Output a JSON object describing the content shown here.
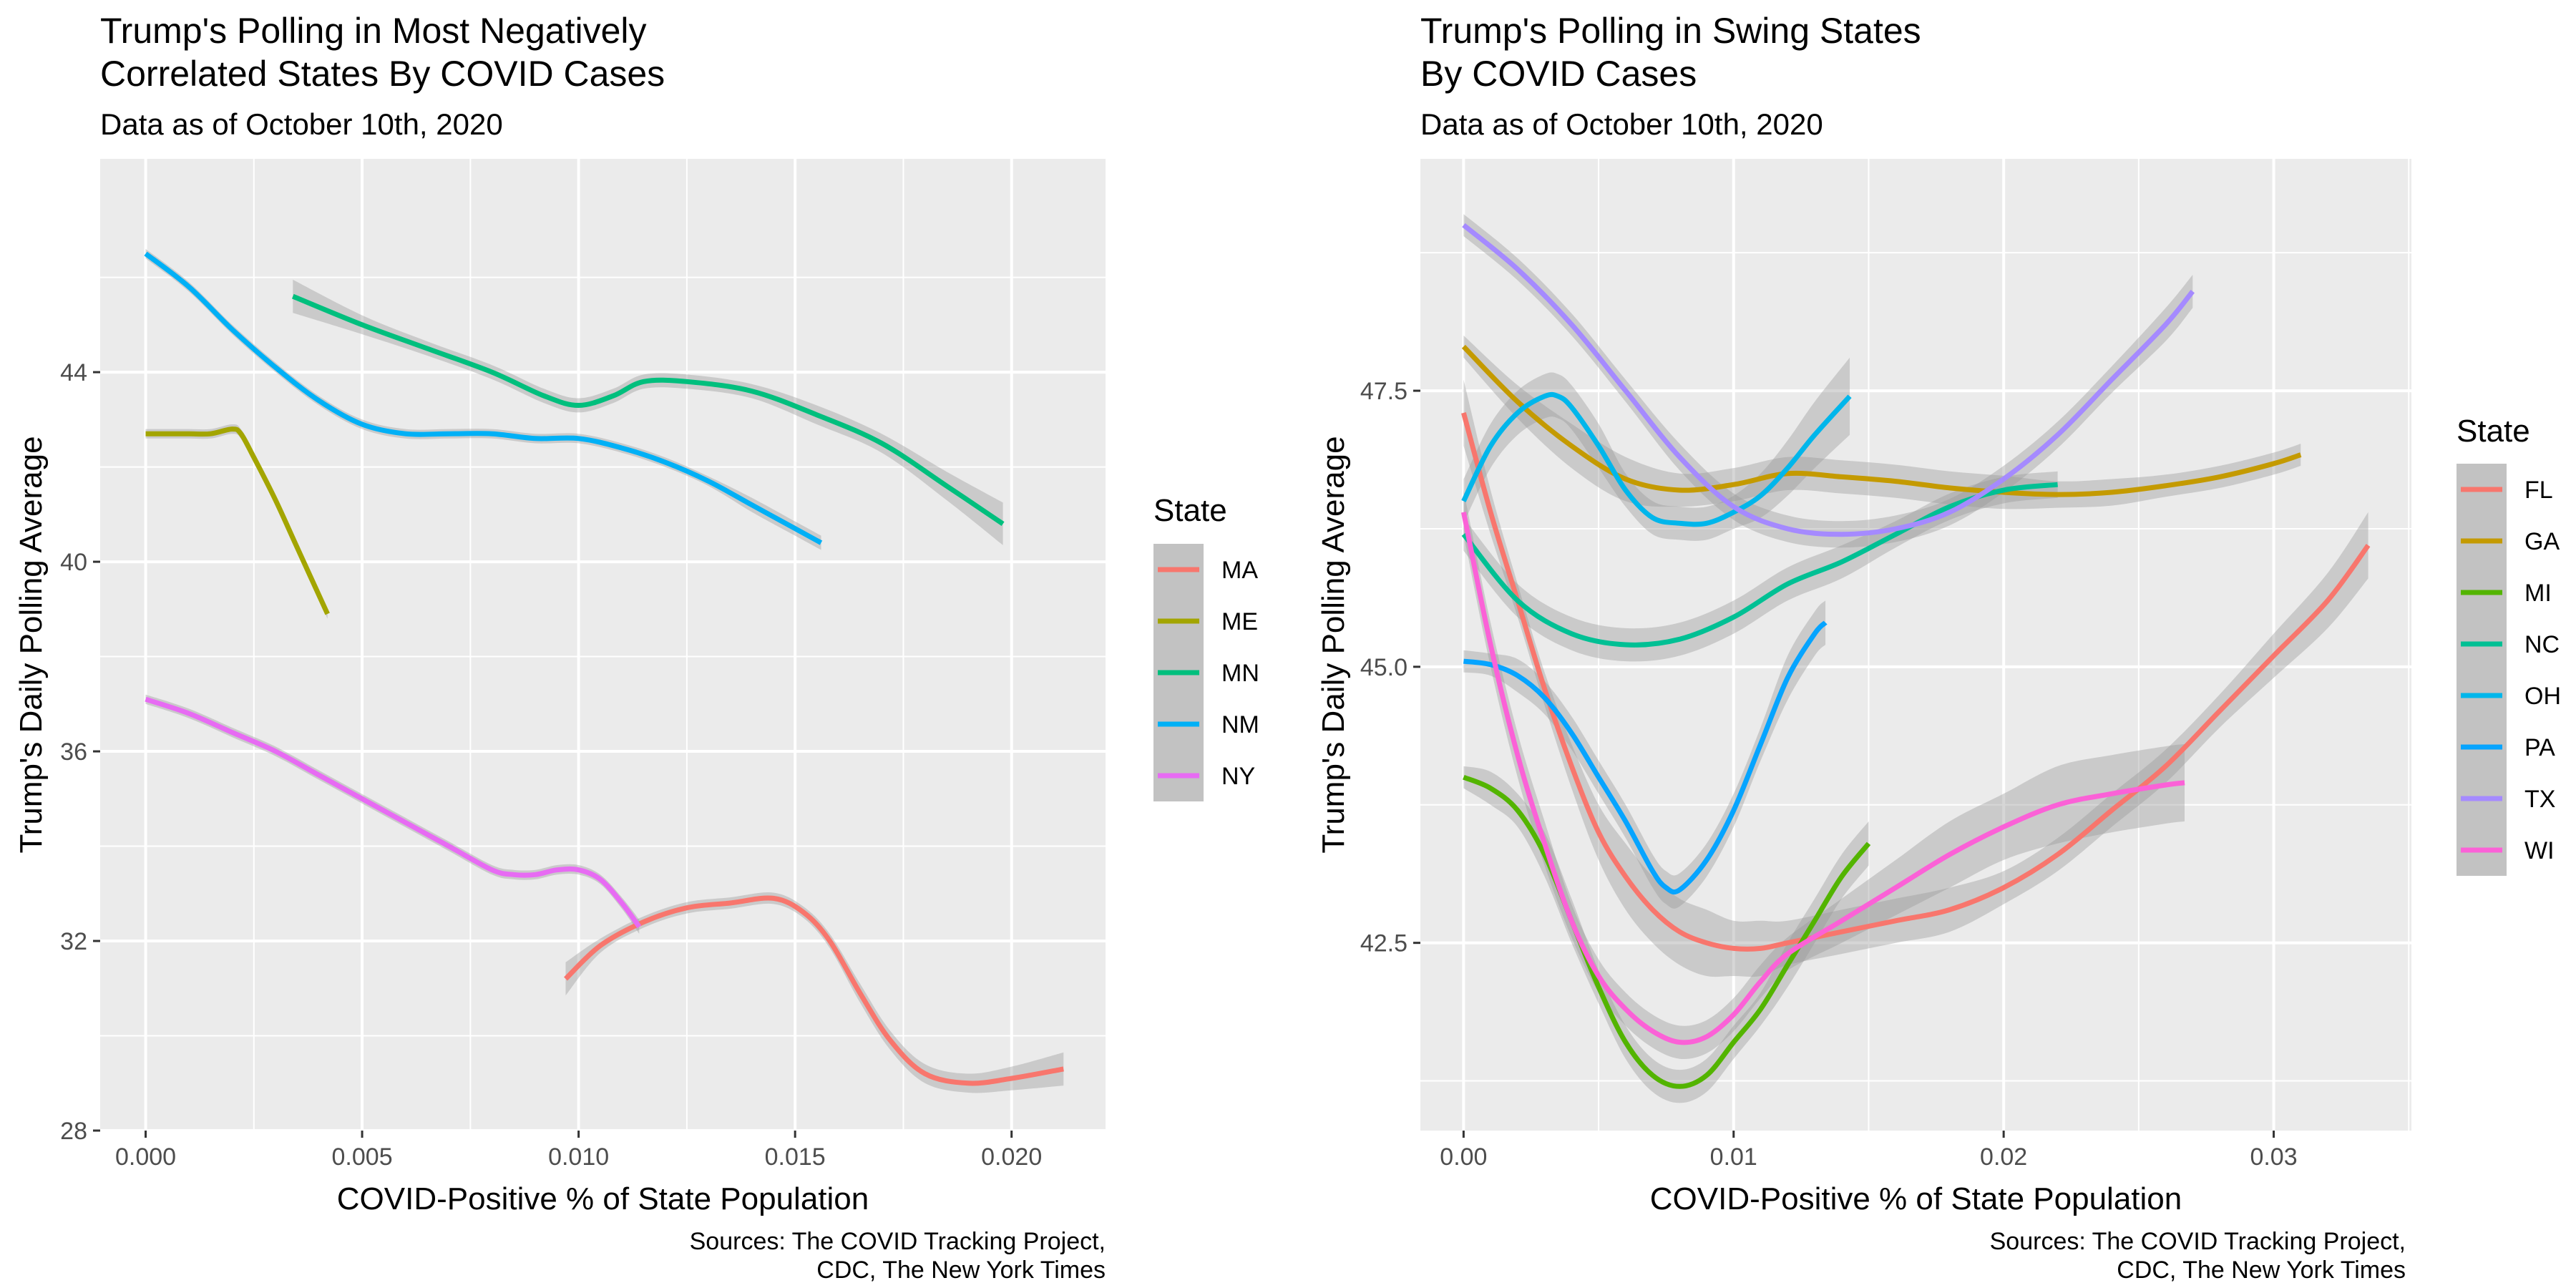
{
  "chart_data": [
    {
      "type": "line",
      "title": "Trump's Polling in Most Negatively\nCorrelated States By COVID Cases",
      "subtitle": "Data as of October 10th, 2020",
      "xlabel": "COVID-Positive % of State Population",
      "ylabel": "Trump's Daily Polling Average",
      "caption": "Sources: The COVID Tracking Project,\nCDC, The New York Times",
      "xlim": [
        -0.00105,
        0.02217
      ],
      "ylim": [
        28.0,
        48.5
      ],
      "x_ticks": [
        0.0,
        0.005,
        0.01,
        0.015,
        0.02
      ],
      "x_tick_labels": [
        "0.000",
        "0.005",
        "0.010",
        "0.015",
        "0.020"
      ],
      "y_ticks": [
        28,
        32,
        36,
        40,
        44
      ],
      "y_tick_labels": [
        "28",
        "32",
        "36",
        "40",
        "44"
      ],
      "grid": true,
      "legend": {
        "title": "State",
        "position": "right"
      },
      "series": [
        {
          "name": "MA",
          "color": "#F8766D",
          "x": [
            0.0097,
            0.0105,
            0.0115,
            0.0125,
            0.0135,
            0.0145,
            0.0152,
            0.0158,
            0.0165,
            0.0172,
            0.018,
            0.019,
            0.02,
            0.0212
          ],
          "y": [
            31.2,
            31.9,
            32.4,
            32.7,
            32.8,
            32.9,
            32.6,
            32.0,
            30.9,
            29.9,
            29.2,
            29.0,
            29.1,
            29.3
          ],
          "band": [
            0.35,
            0.15,
            0.12,
            0.12,
            0.12,
            0.12,
            0.12,
            0.15,
            0.2,
            0.2,
            0.2,
            0.2,
            0.25,
            0.35
          ]
        },
        {
          "name": "ME",
          "color": "#A3A500",
          "x": [
            0.0,
            0.0005,
            0.001,
            0.0015,
            0.002,
            0.0022,
            0.0025,
            0.003,
            0.0035,
            0.0042
          ],
          "y": [
            42.7,
            42.7,
            42.7,
            42.7,
            42.8,
            42.7,
            42.2,
            41.3,
            40.3,
            38.9
          ],
          "band": [
            0.1,
            0.1,
            0.1,
            0.1,
            0.1,
            0.1,
            0.1,
            0.1,
            0.1,
            0.1
          ]
        },
        {
          "name": "MN",
          "color": "#00BF7D",
          "x": [
            0.0034,
            0.005,
            0.0065,
            0.008,
            0.0092,
            0.01,
            0.0108,
            0.0115,
            0.0125,
            0.014,
            0.0155,
            0.017,
            0.0185,
            0.0198
          ],
          "y": [
            45.6,
            45.0,
            44.5,
            44.0,
            43.5,
            43.3,
            43.5,
            43.8,
            43.8,
            43.6,
            43.1,
            42.5,
            41.6,
            40.8
          ],
          "band": [
            0.35,
            0.2,
            0.15,
            0.15,
            0.15,
            0.15,
            0.15,
            0.15,
            0.15,
            0.15,
            0.2,
            0.2,
            0.3,
            0.45
          ]
        },
        {
          "name": "NM",
          "color": "#00B0F6",
          "x": [
            0.0,
            0.001,
            0.002,
            0.003,
            0.004,
            0.005,
            0.006,
            0.007,
            0.008,
            0.009,
            0.01,
            0.011,
            0.012,
            0.013,
            0.014,
            0.015,
            0.0156
          ],
          "y": [
            46.5,
            45.8,
            44.9,
            44.1,
            43.4,
            42.9,
            42.7,
            42.7,
            42.7,
            42.6,
            42.6,
            42.4,
            42.1,
            41.7,
            41.2,
            40.7,
            40.4
          ],
          "band": [
            0.1,
            0.1,
            0.1,
            0.1,
            0.1,
            0.1,
            0.1,
            0.1,
            0.1,
            0.1,
            0.1,
            0.1,
            0.1,
            0.1,
            0.15,
            0.15,
            0.15
          ]
        },
        {
          "name": "NY",
          "color": "#E76BF3",
          "x": [
            0.0,
            0.001,
            0.002,
            0.003,
            0.004,
            0.005,
            0.006,
            0.007,
            0.008,
            0.0085,
            0.009,
            0.0095,
            0.01,
            0.0105,
            0.011,
            0.0114
          ],
          "y": [
            37.1,
            36.8,
            36.4,
            36.0,
            35.5,
            35.0,
            34.5,
            34.0,
            33.5,
            33.4,
            33.4,
            33.5,
            33.5,
            33.3,
            32.8,
            32.3
          ],
          "band": [
            0.1,
            0.1,
            0.1,
            0.1,
            0.1,
            0.1,
            0.1,
            0.1,
            0.1,
            0.1,
            0.1,
            0.1,
            0.1,
            0.1,
            0.12,
            0.15
          ]
        }
      ]
    },
    {
      "type": "line",
      "title": "Trump's Polling in Swing States\nBy COVID Cases",
      "subtitle": "Data as of October 10th, 2020",
      "xlabel": "COVID-Positive % of State Population",
      "ylabel": "Trump's Daily Polling Average",
      "caption": "Sources: The COVID Tracking Project,\nCDC, The New York Times",
      "xlim": [
        -0.0016,
        0.0351
      ],
      "ylim": [
        40.8,
        49.6
      ],
      "x_ticks": [
        0.0,
        0.01,
        0.02,
        0.03
      ],
      "x_tick_labels": [
        "0.00",
        "0.01",
        "0.02",
        "0.03"
      ],
      "y_ticks": [
        42.5,
        45.0,
        47.5
      ],
      "y_tick_labels": [
        "42.5",
        "45.0",
        "47.5"
      ],
      "grid": true,
      "legend": {
        "title": "State",
        "position": "right"
      },
      "series": [
        {
          "name": "FL",
          "color": "#F8766D",
          "x": [
            0.0,
            0.001,
            0.002,
            0.003,
            0.004,
            0.005,
            0.006,
            0.007,
            0.008,
            0.009,
            0.01,
            0.011,
            0.012,
            0.014,
            0.016,
            0.018,
            0.02,
            0.022,
            0.024,
            0.026,
            0.028,
            0.03,
            0.032,
            0.0335
          ],
          "y": [
            47.3,
            46.4,
            45.6,
            44.8,
            44.1,
            43.5,
            43.1,
            42.8,
            42.6,
            42.5,
            42.45,
            42.45,
            42.5,
            42.6,
            42.7,
            42.8,
            43.0,
            43.3,
            43.7,
            44.1,
            44.6,
            45.1,
            45.6,
            46.1
          ],
          "band": [
            0.3,
            0.2,
            0.15,
            0.15,
            0.2,
            0.25,
            0.3,
            0.3,
            0.3,
            0.3,
            0.25,
            0.25,
            0.2,
            0.2,
            0.2,
            0.2,
            0.15,
            0.15,
            0.15,
            0.15,
            0.15,
            0.2,
            0.25,
            0.3
          ]
        },
        {
          "name": "GA",
          "color": "#C49A00",
          "x": [
            0.0,
            0.002,
            0.004,
            0.006,
            0.008,
            0.01,
            0.012,
            0.014,
            0.016,
            0.018,
            0.02,
            0.022,
            0.024,
            0.026,
            0.028,
            0.03,
            0.031
          ],
          "y": [
            47.9,
            47.4,
            47.0,
            46.7,
            46.6,
            46.65,
            46.75,
            46.72,
            46.68,
            46.62,
            46.58,
            46.56,
            46.58,
            46.64,
            46.72,
            46.84,
            46.92
          ],
          "band": [
            0.1,
            0.15,
            0.2,
            0.2,
            0.15,
            0.15,
            0.15,
            0.15,
            0.15,
            0.15,
            0.15,
            0.12,
            0.12,
            0.1,
            0.1,
            0.1,
            0.1
          ]
        },
        {
          "name": "MI",
          "color": "#53B400",
          "x": [
            0.0,
            0.001,
            0.002,
            0.003,
            0.004,
            0.005,
            0.006,
            0.007,
            0.008,
            0.009,
            0.01,
            0.011,
            0.012,
            0.013,
            0.014,
            0.015
          ],
          "y": [
            44.0,
            43.9,
            43.7,
            43.3,
            42.7,
            42.1,
            41.6,
            41.3,
            41.2,
            41.3,
            41.6,
            41.9,
            42.3,
            42.7,
            43.1,
            43.4
          ],
          "band": [
            0.1,
            0.15,
            0.15,
            0.2,
            0.2,
            0.15,
            0.15,
            0.15,
            0.15,
            0.15,
            0.15,
            0.15,
            0.2,
            0.2,
            0.2,
            0.2
          ]
        },
        {
          "name": "NC",
          "color": "#00C094",
          "x": [
            0.0,
            0.002,
            0.004,
            0.006,
            0.008,
            0.01,
            0.012,
            0.014,
            0.016,
            0.018,
            0.02,
            0.022
          ],
          "y": [
            46.2,
            45.6,
            45.3,
            45.2,
            45.25,
            45.45,
            45.75,
            45.95,
            46.2,
            46.45,
            46.6,
            46.65
          ],
          "band": [
            0.15,
            0.15,
            0.15,
            0.15,
            0.15,
            0.15,
            0.15,
            0.15,
            0.12,
            0.12,
            0.12,
            0.12
          ]
        },
        {
          "name": "OH",
          "color": "#00B6EB",
          "x": [
            0.0,
            0.001,
            0.002,
            0.003,
            0.0035,
            0.004,
            0.005,
            0.006,
            0.007,
            0.008,
            0.009,
            0.01,
            0.011,
            0.012,
            0.013,
            0.0143
          ],
          "y": [
            46.5,
            47.0,
            47.3,
            47.45,
            47.45,
            47.35,
            47.0,
            46.6,
            46.35,
            46.3,
            46.3,
            46.4,
            46.55,
            46.8,
            47.1,
            47.45
          ],
          "band": [
            0.2,
            0.2,
            0.2,
            0.2,
            0.2,
            0.2,
            0.2,
            0.15,
            0.15,
            0.15,
            0.15,
            0.15,
            0.2,
            0.25,
            0.3,
            0.35
          ]
        },
        {
          "name": "PA",
          "color": "#06A4FF",
          "x": [
            0.0,
            0.001,
            0.002,
            0.003,
            0.004,
            0.005,
            0.006,
            0.007,
            0.0075,
            0.008,
            0.009,
            0.01,
            0.011,
            0.012,
            0.013,
            0.0134
          ],
          "y": [
            45.05,
            45.02,
            44.92,
            44.72,
            44.4,
            44.0,
            43.6,
            43.15,
            43.0,
            42.98,
            43.25,
            43.7,
            44.3,
            44.9,
            45.3,
            45.4
          ],
          "band": [
            0.1,
            0.1,
            0.15,
            0.15,
            0.15,
            0.15,
            0.15,
            0.15,
            0.15,
            0.15,
            0.15,
            0.15,
            0.15,
            0.2,
            0.2,
            0.2
          ]
        },
        {
          "name": "TX",
          "color": "#A58AFF",
          "x": [
            0.0,
            0.002,
            0.004,
            0.006,
            0.008,
            0.01,
            0.012,
            0.014,
            0.016,
            0.018,
            0.02,
            0.022,
            0.024,
            0.026,
            0.027
          ],
          "y": [
            49.0,
            48.6,
            48.1,
            47.5,
            46.9,
            46.45,
            46.25,
            46.2,
            46.25,
            46.4,
            46.7,
            47.1,
            47.6,
            48.1,
            48.4
          ],
          "band": [
            0.1,
            0.1,
            0.1,
            0.1,
            0.12,
            0.12,
            0.12,
            0.12,
            0.12,
            0.12,
            0.12,
            0.12,
            0.12,
            0.15,
            0.15
          ]
        },
        {
          "name": "WI",
          "color": "#FB61D7",
          "x": [
            0.0,
            0.001,
            0.002,
            0.003,
            0.004,
            0.005,
            0.006,
            0.007,
            0.008,
            0.009,
            0.01,
            0.011,
            0.012,
            0.014,
            0.016,
            0.018,
            0.02,
            0.022,
            0.024,
            0.026,
            0.0267
          ],
          "y": [
            46.4,
            45.2,
            44.2,
            43.4,
            42.7,
            42.2,
            41.9,
            41.7,
            41.6,
            41.65,
            41.85,
            42.15,
            42.4,
            42.7,
            43.0,
            43.3,
            43.55,
            43.75,
            43.85,
            43.93,
            43.95
          ],
          "band": [
            0.2,
            0.2,
            0.2,
            0.2,
            0.15,
            0.15,
            0.15,
            0.15,
            0.15,
            0.15,
            0.15,
            0.15,
            0.15,
            0.2,
            0.25,
            0.3,
            0.3,
            0.35,
            0.35,
            0.35,
            0.35
          ]
        }
      ]
    }
  ]
}
